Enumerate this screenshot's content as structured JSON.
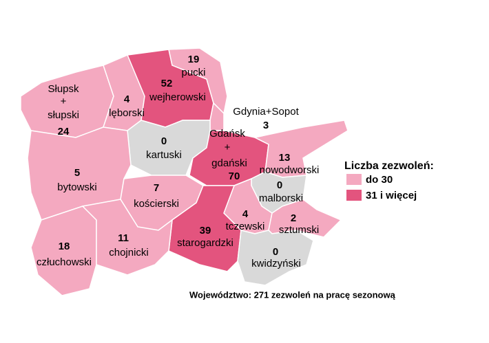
{
  "regions": [
    {
      "label": [
        "Słupsk",
        "+",
        "słupski"
      ],
      "value": 24,
      "color": "#f4a9c0"
    },
    {
      "label": [
        "lęborski"
      ],
      "value": 4,
      "color": "#f4a9c0"
    },
    {
      "label": [
        "wejherowski"
      ],
      "value": 52,
      "color": "#e3547e"
    },
    {
      "label": [
        "pucki"
      ],
      "value": 19,
      "color": "#f4a9c0"
    },
    {
      "label": [
        "Gdynia+Sopot"
      ],
      "value": 3,
      "color": "#f4a9c0"
    },
    {
      "label": [
        "kartuski"
      ],
      "value": 0,
      "color": "#d9d9d9"
    },
    {
      "label": [
        "Gdańsk",
        "+",
        "gdański"
      ],
      "value": 70,
      "color": "#e3547e"
    },
    {
      "label": [
        "nowodworski"
      ],
      "value": 13,
      "color": "#f4a9c0"
    },
    {
      "label": [
        "bytowski"
      ],
      "value": 5,
      "color": "#f4a9c0"
    },
    {
      "label": [
        "kościerski"
      ],
      "value": 7,
      "color": "#f4a9c0"
    },
    {
      "label": [
        "malborski"
      ],
      "value": 0,
      "color": "#d9d9d9"
    },
    {
      "label": [
        "tczewski"
      ],
      "value": 4,
      "color": "#f4a9c0"
    },
    {
      "label": [
        "sztumski"
      ],
      "value": 2,
      "color": "#f4a9c0"
    },
    {
      "label": [
        "starogardzki"
      ],
      "value": 39,
      "color": "#e3547e"
    },
    {
      "label": [
        "człuchowski"
      ],
      "value": 18,
      "color": "#f4a9c0"
    },
    {
      "label": [
        "chojnicki"
      ],
      "value": 11,
      "color": "#f4a9c0"
    },
    {
      "label": [
        "kwidzyński"
      ],
      "value": 0,
      "color": "#d9d9d9"
    }
  ],
  "legend": {
    "title": "Liczba zezwoleń:",
    "items": [
      {
        "label": "do 30",
        "color": "#f4a9c0"
      },
      {
        "label": "31 i więcej",
        "color": "#e3547e"
      }
    ]
  },
  "footer": "Województwo: 271  zezwoleń na pracę sezonową"
}
